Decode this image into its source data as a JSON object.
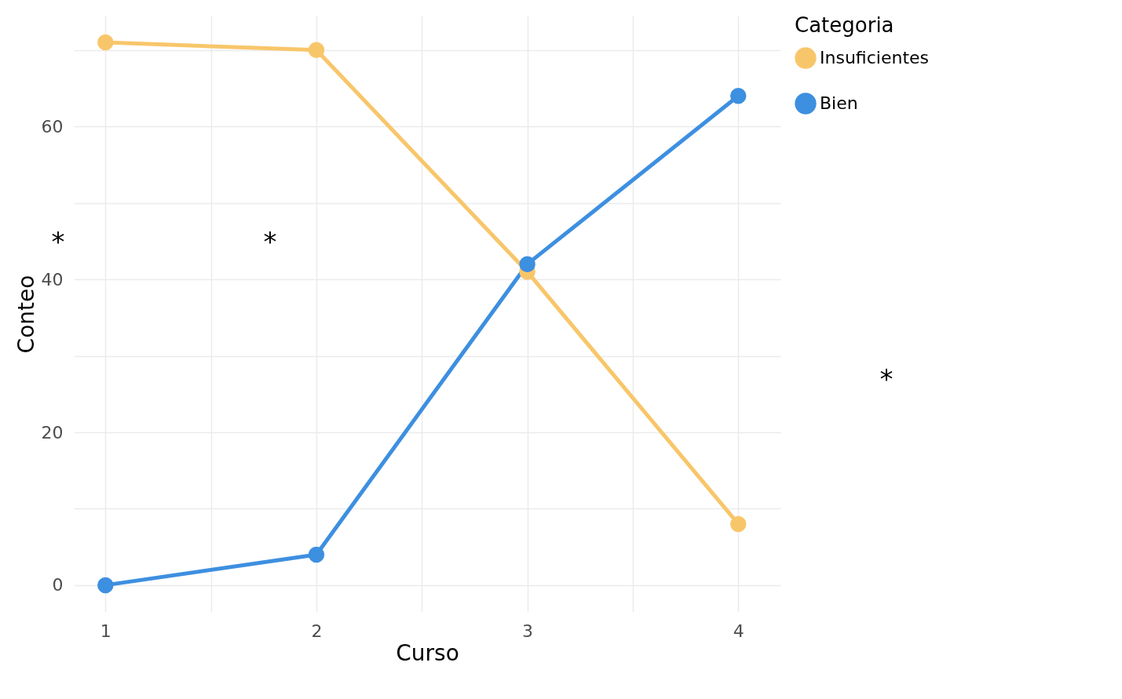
{
  "chart_data": {
    "type": "line",
    "xlabel": "Curso",
    "ylabel": "Conteo",
    "legend_title": "Categoria",
    "x": [
      1,
      2,
      3,
      4
    ],
    "series": [
      {
        "name": "Insuficientes",
        "color": "#f8c66a",
        "values": [
          71,
          70,
          41,
          8
        ]
      },
      {
        "name": "Bien",
        "color": "#3d8fe0",
        "values": [
          0,
          4,
          42,
          64
        ]
      }
    ],
    "xlim": [
      0.85,
      4.2
    ],
    "ylim": [
      -3.5,
      74.5
    ],
    "xticks": [
      1,
      {
        "value": 1.5,
        "label": null
      },
      2,
      {
        "value": 2.5,
        "label": null
      },
      3,
      {
        "value": 3.5,
        "label": null
      },
      4
    ],
    "yticks": [
      0,
      {
        "value": 10,
        "label": null
      },
      20,
      {
        "value": 30,
        "label": null
      },
      40,
      {
        "value": 50,
        "label": null
      },
      60,
      {
        "value": 70,
        "label": null
      }
    ],
    "grid": true,
    "legend": "right",
    "marker": "circle",
    "line_style": "solid",
    "annotations": [
      "*",
      "*",
      "*"
    ]
  }
}
